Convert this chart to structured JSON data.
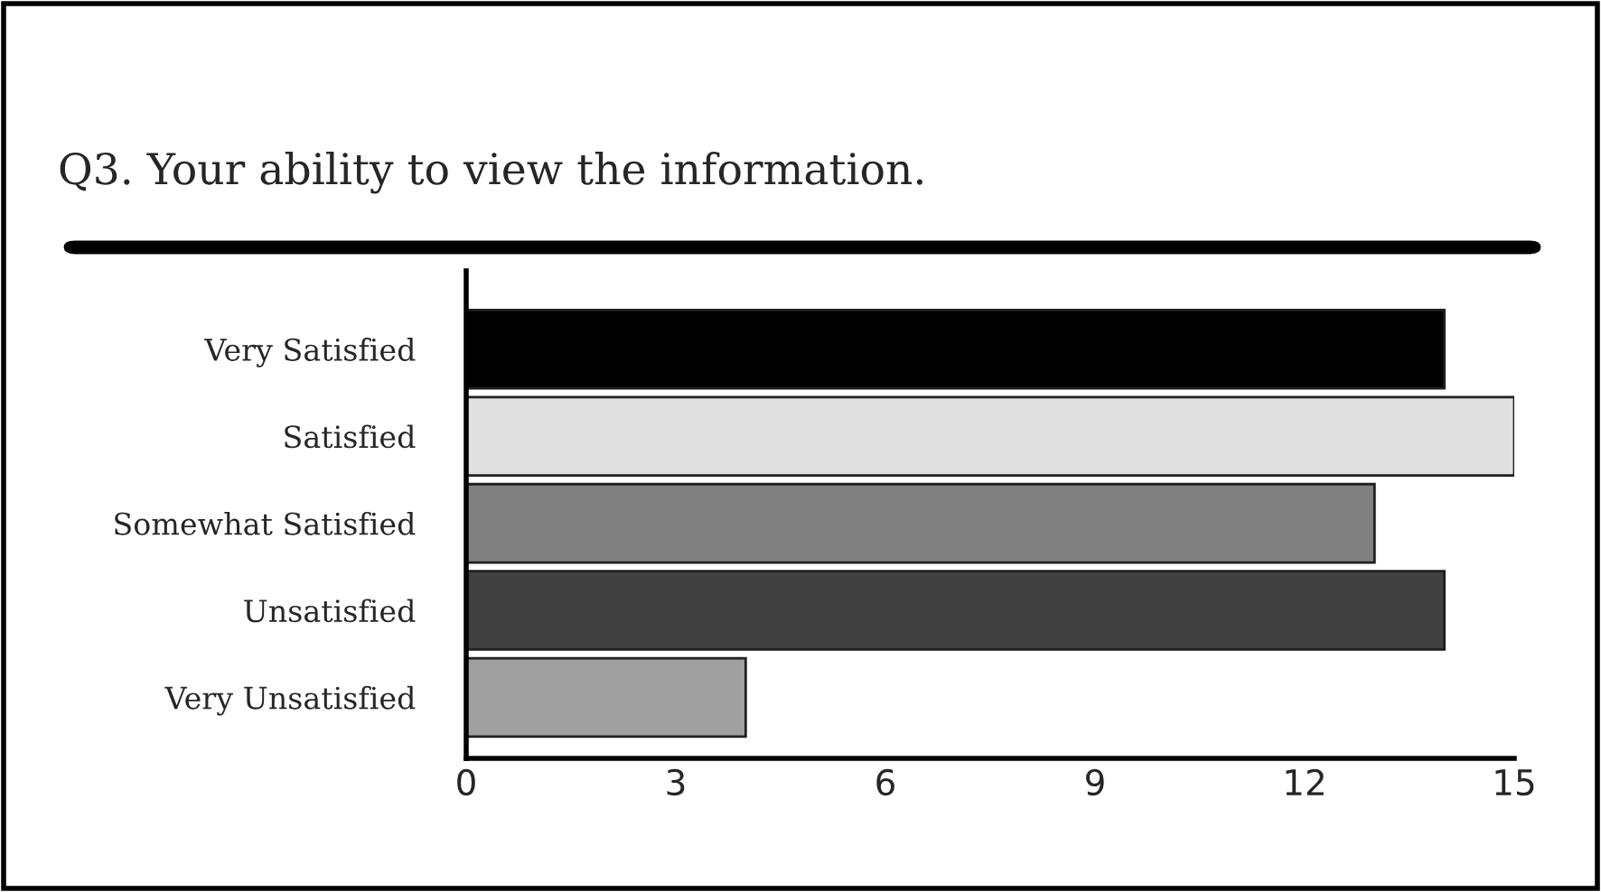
{
  "chart_data": {
    "type": "bar",
    "orientation": "horizontal",
    "title": "Q3. Your ability to view the information.",
    "categories": [
      "Very Satisfied",
      "Satisfied",
      "Somewhat Satisfied",
      "Unsatisfied",
      "Very Unsatisfied"
    ],
    "values": [
      14,
      15,
      13,
      14,
      4
    ],
    "colors": [
      "#000000",
      "#e0e0e0",
      "#808080",
      "#404040",
      "#a0a0a0"
    ],
    "xlim": [
      0,
      15
    ],
    "xticks": [
      0,
      3,
      6,
      9,
      12,
      15
    ],
    "grid": false,
    "legend": false
  }
}
